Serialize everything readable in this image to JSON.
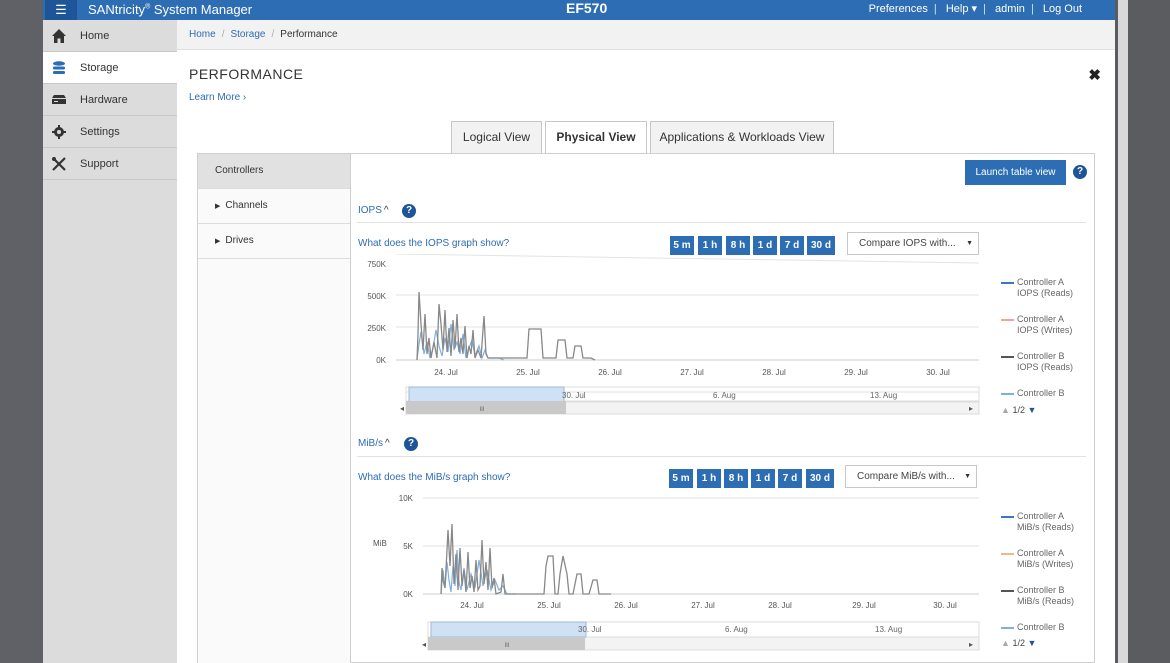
{
  "topbar": {
    "menu_icon": "☰",
    "brand": "SANtricity",
    "brand_reg": "®",
    "brand_rest": " System Manager",
    "system_name": "EF570",
    "links": [
      "Preferences",
      "Help ▾",
      "admin",
      "Log Out"
    ]
  },
  "sidebar": {
    "items": [
      {
        "label": "Home",
        "icon": "home-icon"
      },
      {
        "label": "Storage",
        "icon": "storage-icon"
      },
      {
        "label": "Hardware",
        "icon": "hardware-icon"
      },
      {
        "label": "Settings",
        "icon": "gear-icon"
      },
      {
        "label": "Support",
        "icon": "tools-icon"
      }
    ],
    "active_index": 1
  },
  "breadcrumb": [
    "Home",
    "Storage",
    "Performance"
  ],
  "page": {
    "title": "PERFORMANCE",
    "learn_more": "Learn More ›",
    "close": "✖"
  },
  "tabs": [
    "Logical View",
    "Physical View",
    "Applications & Workloads View"
  ],
  "active_tab": 1,
  "subnav": [
    {
      "label": "Controllers",
      "caret": ""
    },
    {
      "label": "Channels",
      "caret": "▶"
    },
    {
      "label": "Drives",
      "caret": "▶"
    }
  ],
  "launch_button": "Launch table view",
  "help": "?",
  "ranges": [
    "5 m",
    "1 h",
    "8 h",
    "1 d",
    "7 d",
    "30 d"
  ],
  "colors": {
    "ctrlA_reads": "#3a78c2",
    "ctrlA_writes": "#f3a0a0",
    "ctrlB_reads": "#555555",
    "ctrlB_other": "#7fb0dc"
  },
  "iops": {
    "header": "IOPS",
    "header_chevron": "^",
    "what_link": "What does the IOPS graph show?",
    "compare": "Compare IOPS with...",
    "y_ticks": [
      "750K",
      "500K",
      "250K",
      "0K"
    ],
    "x_ticks": [
      "24. Jul",
      "25. Jul",
      "26. Jul",
      "27. Jul",
      "28. Jul",
      "29. Jul",
      "30. Jul"
    ],
    "nav_ticks": [
      "30. Jul",
      "6. Aug",
      "13. Aug"
    ],
    "legend": [
      {
        "line1": "Controller A",
        "line2": "IOPS (Reads)"
      },
      {
        "line1": "Controller A",
        "line2": "IOPS (Writes)"
      },
      {
        "line1": "Controller B",
        "line2": "IOPS (Reads)"
      },
      {
        "line1": "Controller B",
        "line2": ""
      }
    ],
    "pager": "1/2"
  },
  "mibs": {
    "header": "MiB/s",
    "header_chevron": "^",
    "what_link": "What does the MiB/s graph show?",
    "compare": "Compare MiB/s with...",
    "y_unit": "MiB",
    "y_ticks": [
      "10K",
      "5K",
      "0K"
    ],
    "x_ticks": [
      "24. Jul",
      "25. Jul",
      "26. Jul",
      "27. Jul",
      "28. Jul",
      "29. Jul",
      "30. Jul"
    ],
    "nav_ticks": [
      "30. Jul",
      "6. Aug",
      "13. Aug"
    ],
    "legend": [
      {
        "line1": "Controller A",
        "line2": "MiB/s (Reads)"
      },
      {
        "line1": "Controller A",
        "line2": "MiB/s (Writes)"
      },
      {
        "line1": "Controller B",
        "line2": "MiB/s (Reads)"
      },
      {
        "line1": "Controller B",
        "line2": ""
      }
    ],
    "pager": "1/2"
  },
  "nav_grip": "III",
  "nav_left": "◂",
  "nav_right": "▸"
}
